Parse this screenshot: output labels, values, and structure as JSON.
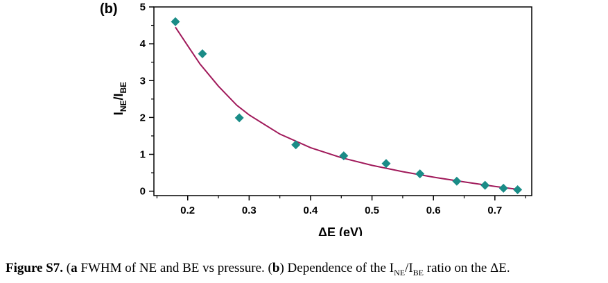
{
  "chart_data": {
    "type": "scatter",
    "panel_label": "(b)",
    "xlabel": "ΔE (eV)",
    "ylabel_main": "I",
    "ylabel_sub1": "NE",
    "ylabel_sep": "/I",
    "ylabel_sub2": "BE",
    "xlim": [
      0.145,
      0.76
    ],
    "ylim": [
      -0.12,
      5
    ],
    "xticks": [
      "0.2",
      "0.3",
      "0.4",
      "0.5",
      "0.6",
      "0.7"
    ],
    "yticks": [
      "0",
      "1",
      "2",
      "3",
      "4",
      "5"
    ],
    "marker_color": "#1a8c87",
    "fit_color": "#a0195a",
    "points": {
      "x": [
        0.18,
        0.224,
        0.284,
        0.376,
        0.454,
        0.523,
        0.578,
        0.638,
        0.684,
        0.714,
        0.737
      ],
      "y": [
        4.6,
        3.73,
        1.99,
        1.26,
        0.96,
        0.75,
        0.47,
        0.27,
        0.16,
        0.08,
        0.04
      ]
    },
    "fit_line": {
      "x": [
        0.18,
        0.2,
        0.22,
        0.25,
        0.28,
        0.3,
        0.35,
        0.4,
        0.45,
        0.5,
        0.55,
        0.6,
        0.65,
        0.7,
        0.737
      ],
      "y": [
        4.45,
        3.95,
        3.45,
        2.85,
        2.33,
        2.07,
        1.55,
        1.18,
        0.91,
        0.7,
        0.53,
        0.38,
        0.25,
        0.13,
        0.05
      ]
    }
  },
  "caption": {
    "figure_label": "Figure S7.",
    "a_label": "a",
    "a_text": " FWHM of NE and BE vs pressure. (",
    "b_label": "b",
    "b_text_1": ") Dependence of the I",
    "sub1": "NE",
    "b_text_2": "/I",
    "sub2": "BE",
    "b_text_3": " ratio on the ΔE."
  }
}
